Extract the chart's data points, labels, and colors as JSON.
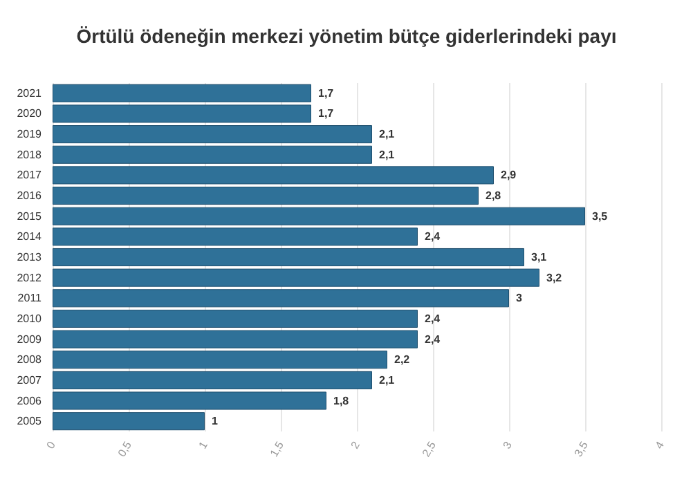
{
  "chart_data": {
    "type": "bar",
    "orientation": "horizontal",
    "title": "Örtülü ödeneğin merkezi yönetim bütçe giderlerindeki payı",
    "categories": [
      "2021",
      "2020",
      "2019",
      "2018",
      "2017",
      "2016",
      "2015",
      "2014",
      "2013",
      "2012",
      "2011",
      "2010",
      "2009",
      "2008",
      "2007",
      "2006",
      "2005"
    ],
    "values": [
      1.7,
      1.7,
      2.1,
      2.1,
      2.9,
      2.8,
      3.5,
      2.4,
      3.1,
      3.2,
      3,
      2.4,
      2.4,
      2.2,
      2.1,
      1.8,
      1
    ],
    "value_labels": [
      "1,7",
      "1,7",
      "2,1",
      "2,1",
      "2,9",
      "2,8",
      "3,5",
      "2,4",
      "3,1",
      "3,2",
      "3",
      "2,4",
      "2,4",
      "2,2",
      "2,1",
      "1,8",
      "1"
    ],
    "color": "#2f7198",
    "xlim": [
      0,
      4
    ],
    "xticks": [
      0,
      {
        "value": 0.5,
        "label": "0,5"
      },
      1,
      {
        "value": 1.5,
        "label": "1,5"
      },
      2,
      {
        "value": 2.5,
        "label": "2,5"
      },
      3,
      {
        "value": 3.5,
        "label": "3,5"
      },
      4
    ],
    "grid": "x"
  }
}
